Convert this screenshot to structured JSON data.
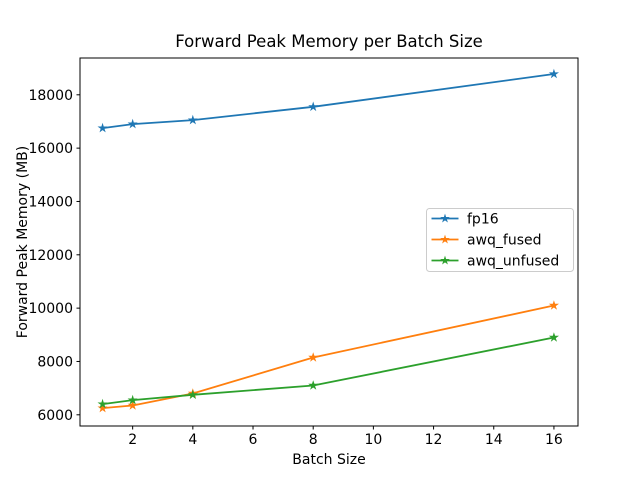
{
  "chart_data": {
    "type": "line",
    "title": "Forward Peak Memory per Batch Size",
    "xlabel": "Batch Size",
    "ylabel": "Forward Peak Memory (MB)",
    "x": [
      1,
      2,
      4,
      8,
      16
    ],
    "series": [
      {
        "name": "fp16",
        "color": "#1f77b4",
        "values": [
          16750,
          16900,
          17050,
          17550,
          18780
        ]
      },
      {
        "name": "awq_fused",
        "color": "#ff7f0e",
        "values": [
          6250,
          6350,
          6800,
          8150,
          10100
        ]
      },
      {
        "name": "awq_unfused",
        "color": "#2ca02c",
        "values": [
          6400,
          6550,
          6750,
          7100,
          8900
        ]
      }
    ],
    "marker": "star",
    "grid": false,
    "legend_position": "center-right",
    "xlim": [
      0.25,
      16.8
    ],
    "ylim": [
      5580,
      19380
    ],
    "xticks": [
      2,
      4,
      6,
      8,
      10,
      12,
      14,
      16
    ],
    "yticks": [
      6000,
      8000,
      10000,
      12000,
      14000,
      16000,
      18000
    ],
    "colors": {
      "spine": "#000000",
      "legend_border": "#cccccc",
      "background": "#ffffff"
    }
  }
}
